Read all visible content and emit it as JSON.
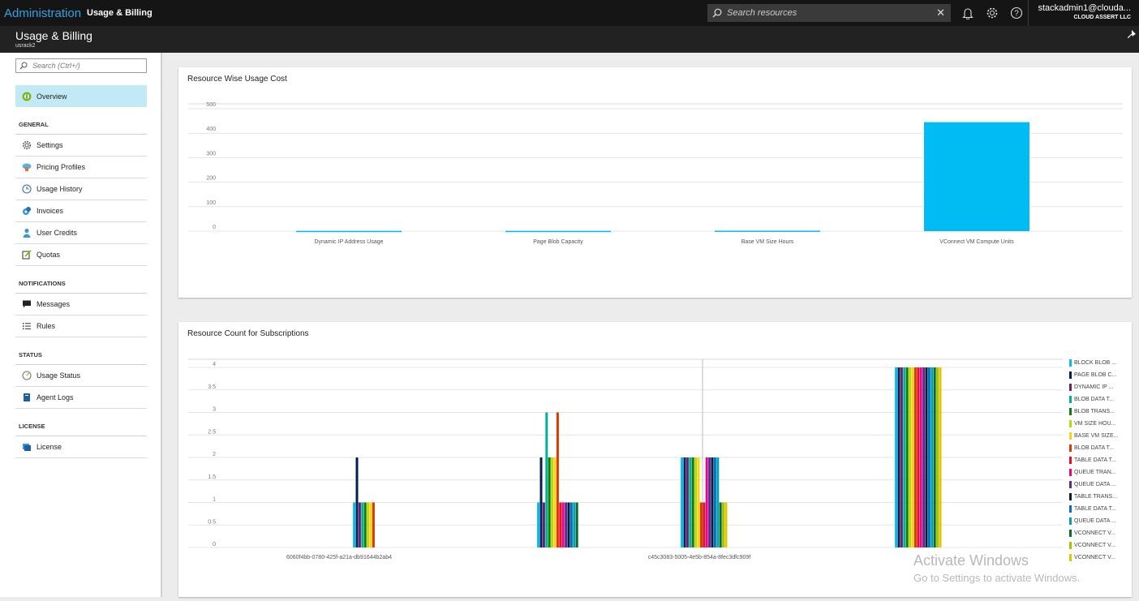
{
  "topbar": {
    "brand": "Administration",
    "breadcrumb": "Usage & Billing",
    "search_placeholder": "Search resources",
    "user_name": "stackadmin1@clouda...",
    "user_org": "CLOUD ASSERT LLC"
  },
  "blade": {
    "title": "Usage & Billing",
    "subtitle": "usrack2"
  },
  "sidebar": {
    "search_placeholder": "Search (Ctrl+/)",
    "overview": "Overview",
    "sections": {
      "general": "GENERAL",
      "notifications": "NOTIFICATIONS",
      "status": "STATUS",
      "license": "LICENSE"
    },
    "items": {
      "settings": "Settings",
      "pricing_profiles": "Pricing Profiles",
      "usage_history": "Usage History",
      "invoices": "Invoices",
      "user_credits": "User Credits",
      "quotas": "Quotas",
      "messages": "Messages",
      "rules": "Rules",
      "usage_status": "Usage Status",
      "agent_logs": "Agent Logs",
      "license": "License"
    }
  },
  "chart_data": [
    {
      "type": "bar",
      "title": "Resource Wise Usage Cost",
      "categories": [
        "Dynamic IP Address Usage",
        "Page Blob Capacity",
        "Base VM Size Hours",
        "VConnect VM Compute Units"
      ],
      "values": [
        1,
        1,
        2,
        445
      ],
      "ylim": [
        0,
        500
      ],
      "yticks": [
        0,
        100,
        200,
        300,
        400,
        500
      ],
      "colors": {
        "bar": "#00bcf2"
      },
      "grid": true
    },
    {
      "type": "bar",
      "title": "Resource Count for Subscriptions",
      "categories": [
        "6060f4bb-0780-425f-a21a-db91644b2ab4",
        "",
        "c45c3083-5005-4e5b-854a-8fec3dfc909f",
        ""
      ],
      "ylim": [
        0,
        4
      ],
      "yticks": [
        "0",
        "0.5",
        "1",
        "1.5",
        "2",
        "2.5",
        "3",
        "3.5",
        "4"
      ],
      "grid": true,
      "legend_position": "right",
      "series": [
        {
          "name": "BLOCK BLOB ...",
          "color": "#00bcf2",
          "values": [
            1,
            1,
            2,
            4
          ]
        },
        {
          "name": "PAGE BLOB C...",
          "color": "#002050",
          "values": [
            2,
            2,
            2,
            4
          ]
        },
        {
          "name": "DYNAMIC IP ...",
          "color": "#68217a",
          "values": [
            1,
            1,
            2,
            4
          ]
        },
        {
          "name": "BLOB DATA T...",
          "color": "#00b294",
          "values": [
            1,
            3,
            2,
            4
          ]
        },
        {
          "name": "BLOB TRANS...",
          "color": "#107c10",
          "values": [
            1,
            2,
            2,
            4
          ]
        },
        {
          "name": "VM SIZE HOU...",
          "color": "#bad80a",
          "values": [
            1,
            2,
            2,
            4
          ]
        },
        {
          "name": "BASE VM SIZE...",
          "color": "#fcd116",
          "values": [
            1,
            2,
            2,
            4
          ]
        },
        {
          "name": "BLOB DATA T...",
          "color": "#d83b01",
          "values": [
            1,
            3,
            1,
            4
          ]
        },
        {
          "name": "TABLE DATA T...",
          "color": "#e81123",
          "values": [
            0,
            1,
            1,
            4
          ]
        },
        {
          "name": "QUEUE TRAN...",
          "color": "#ec008c",
          "values": [
            0,
            1,
            2,
            4
          ]
        },
        {
          "name": "QUEUE DATA ...",
          "color": "#5c2d91",
          "values": [
            0,
            1,
            2,
            4
          ]
        },
        {
          "name": "TABLE TRANS...",
          "color": "#0b1a3b",
          "values": [
            0,
            1,
            2,
            4
          ]
        },
        {
          "name": "TABLE DATA T...",
          "color": "#0072c6",
          "values": [
            0,
            1,
            2,
            4
          ]
        },
        {
          "name": "QUEUE DATA ...",
          "color": "#00a2ad",
          "values": [
            0,
            1,
            2,
            4
          ]
        },
        {
          "name": "VCONNECT V...",
          "color": "#0e6b2f",
          "values": [
            0,
            1,
            1,
            4
          ]
        },
        {
          "name": "VCONNECT V...",
          "color": "#a4c400",
          "values": [
            0,
            0,
            1,
            4
          ]
        },
        {
          "name": "VCONNECT V...",
          "color": "#e3c400",
          "values": [
            0,
            0,
            1,
            4
          ]
        }
      ]
    }
  ],
  "watermark": {
    "line1": "Activate Windows",
    "line2": "Go to Settings to activate Windows."
  }
}
